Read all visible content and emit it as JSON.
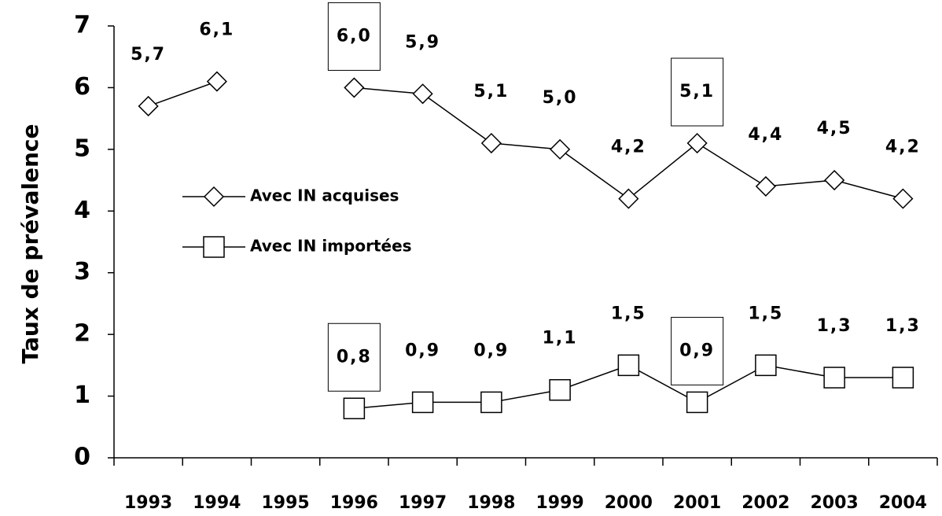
{
  "chart_data": {
    "type": "line",
    "ylabel": "Taux de prévalence",
    "categories": [
      "1993",
      "1994",
      "1995",
      "1996",
      "1997",
      "1998",
      "1999",
      "2000",
      "2001",
      "2002",
      "2003",
      "2004"
    ],
    "series": [
      {
        "name": "Avec IN acquises",
        "marker": "diamond",
        "color": "#000000",
        "values": [
          5.7,
          6.1,
          null,
          6.0,
          5.9,
          5.1,
          5.0,
          4.2,
          5.1,
          4.4,
          4.5,
          4.2
        ],
        "value_labels": [
          "5,7",
          "6,1",
          null,
          "6,0",
          "5,9",
          "5,1",
          "5,0",
          "4,2",
          "5,1",
          "4,4",
          "4,5",
          "4,2"
        ]
      },
      {
        "name": "Avec IN importées",
        "marker": "square",
        "color": "#000000",
        "values": [
          null,
          null,
          null,
          0.8,
          0.9,
          0.9,
          1.1,
          1.5,
          0.9,
          1.5,
          1.3,
          1.3
        ],
        "value_labels": [
          null,
          null,
          null,
          "0,8",
          "0,9",
          "0,9",
          "1,1",
          "1,5",
          "0,9",
          "1,5",
          "1,3",
          "1,3"
        ]
      }
    ],
    "ylim": [
      0,
      7
    ],
    "yticks": [
      0,
      1,
      2,
      3,
      4,
      5,
      6,
      7
    ],
    "grid": false,
    "legend": "left"
  }
}
